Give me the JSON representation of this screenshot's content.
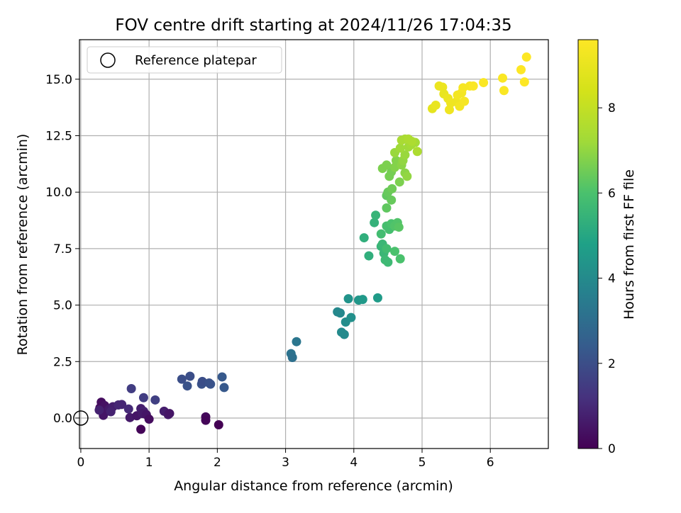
{
  "chart_data": {
    "type": "scatter",
    "title": "FOV centre drift starting at 2024/11/26 17:04:35",
    "xlabel": "Angular distance from reference (arcmin)",
    "ylabel": "Rotation from reference (arcmin)",
    "colorbar_label": "Hours from first FF file",
    "xlim": [
      -0.02,
      6.85
    ],
    "ylim": [
      -1.35,
      16.75
    ],
    "x_ticks": [
      0,
      1,
      2,
      3,
      4,
      5,
      6
    ],
    "y_ticks": [
      0.0,
      2.5,
      5.0,
      7.5,
      10.0,
      12.5,
      15.0
    ],
    "colorbar_range": [
      0,
      9.6
    ],
    "colorbar_ticks": [
      0,
      2,
      4,
      6,
      8
    ],
    "colormap": "viridis",
    "grid": true,
    "legend_position": "top-left",
    "reference": {
      "label": "Reference platepar",
      "x": 0,
      "y": 0
    },
    "series": [
      {
        "marker": "circle-filled",
        "points": [
          [
            0.28,
            0.45,
            0.2
          ],
          [
            0.3,
            0.7,
            0.3
          ],
          [
            0.35,
            0.55,
            0.4
          ],
          [
            0.38,
            0.3,
            0.5
          ],
          [
            0.33,
            0.12,
            0.5
          ],
          [
            0.42,
            0.4,
            0.6
          ],
          [
            0.47,
            0.5,
            0.7
          ],
          [
            0.27,
            0.35,
            0.8
          ],
          [
            0.44,
            0.28,
            0.8
          ],
          [
            0.55,
            0.58,
            0.9
          ],
          [
            0.6,
            0.6,
            0.9
          ],
          [
            0.7,
            0.4,
            1.0
          ],
          [
            0.72,
            0.02,
            0.6
          ],
          [
            0.82,
            0.1,
            0.5
          ],
          [
            0.88,
            0.42,
            0.7
          ],
          [
            0.92,
            0.3,
            0.8
          ],
          [
            0.9,
            0.2,
            0.6
          ],
          [
            0.96,
            0.15,
            0.5
          ],
          [
            1.0,
            -0.05,
            0.3
          ],
          [
            0.88,
            -0.5,
            0.1
          ],
          [
            1.22,
            0.3,
            0.7
          ],
          [
            1.28,
            0.15,
            0.6
          ],
          [
            1.3,
            0.2,
            0.5
          ],
          [
            1.83,
            0.05,
            0.2
          ],
          [
            1.83,
            -0.1,
            0.1
          ],
          [
            2.02,
            -0.3,
            0.0
          ],
          [
            0.74,
            1.3,
            1.5
          ],
          [
            0.92,
            0.9,
            1.5
          ],
          [
            1.09,
            0.8,
            1.6
          ],
          [
            1.48,
            1.72,
            2.0
          ],
          [
            1.6,
            1.85,
            2.0
          ],
          [
            1.56,
            1.42,
            2.1
          ],
          [
            1.77,
            1.5,
            2.1
          ],
          [
            1.78,
            1.62,
            2.0
          ],
          [
            1.9,
            1.5,
            2.2
          ],
          [
            1.88,
            1.55,
            2.1
          ],
          [
            2.07,
            1.82,
            2.3
          ],
          [
            2.1,
            1.35,
            2.3
          ],
          [
            3.08,
            2.85,
            3.2
          ],
          [
            3.1,
            2.68,
            3.1
          ],
          [
            3.16,
            3.38,
            3.3
          ],
          [
            3.76,
            4.7,
            3.9
          ],
          [
            3.8,
            4.65,
            3.9
          ],
          [
            3.82,
            3.8,
            4.0
          ],
          [
            3.86,
            3.7,
            4.0
          ],
          [
            3.88,
            4.25,
            4.1
          ],
          [
            3.96,
            4.45,
            4.2
          ],
          [
            3.92,
            5.28,
            4.3
          ],
          [
            4.07,
            5.22,
            4.4
          ],
          [
            4.13,
            5.25,
            4.5
          ],
          [
            4.35,
            5.32,
            4.6
          ],
          [
            4.15,
            7.98,
            5.3
          ],
          [
            4.22,
            7.18,
            5.3
          ],
          [
            4.3,
            8.65,
            5.4
          ],
          [
            4.32,
            8.98,
            5.5
          ],
          [
            4.4,
            7.6,
            5.5
          ],
          [
            4.42,
            7.7,
            5.6
          ],
          [
            4.44,
            7.3,
            5.6
          ],
          [
            4.46,
            7.0,
            5.7
          ],
          [
            4.5,
            6.9,
            5.7
          ],
          [
            4.48,
            7.5,
            5.8
          ],
          [
            4.4,
            8.15,
            5.8
          ],
          [
            4.48,
            8.5,
            5.9
          ],
          [
            4.52,
            8.35,
            5.9
          ],
          [
            4.55,
            8.6,
            6.0
          ],
          [
            4.6,
            8.5,
            6.1
          ],
          [
            4.64,
            8.65,
            6.1
          ],
          [
            4.66,
            8.45,
            6.2
          ],
          [
            4.6,
            7.38,
            6.0
          ],
          [
            4.68,
            7.05,
            6.0
          ],
          [
            4.48,
            9.3,
            6.3
          ],
          [
            4.48,
            9.85,
            6.3
          ],
          [
            4.5,
            10.0,
            6.4
          ],
          [
            4.55,
            9.65,
            6.4
          ],
          [
            4.56,
            10.15,
            6.5
          ],
          [
            4.52,
            10.7,
            6.6
          ],
          [
            4.55,
            10.9,
            6.6
          ],
          [
            4.42,
            11.05,
            6.7
          ],
          [
            4.48,
            11.2,
            6.7
          ],
          [
            4.6,
            11.1,
            6.8
          ],
          [
            4.62,
            11.4,
            6.8
          ],
          [
            4.67,
            10.45,
            6.7
          ],
          [
            4.7,
            11.2,
            6.9
          ],
          [
            4.75,
            10.85,
            6.9
          ],
          [
            4.78,
            10.7,
            7.0
          ],
          [
            4.72,
            11.4,
            7.0
          ],
          [
            4.75,
            11.65,
            7.1
          ],
          [
            4.6,
            11.75,
            7.1
          ],
          [
            4.68,
            11.95,
            7.2
          ],
          [
            4.8,
            12.0,
            7.2
          ],
          [
            4.84,
            12.1,
            7.3
          ],
          [
            4.9,
            12.2,
            7.3
          ],
          [
            4.7,
            12.3,
            7.4
          ],
          [
            4.75,
            12.35,
            7.4
          ],
          [
            4.8,
            12.35,
            7.5
          ],
          [
            4.85,
            12.25,
            7.5
          ],
          [
            4.93,
            11.8,
            7.5
          ],
          [
            5.15,
            13.7,
            8.9
          ],
          [
            5.2,
            13.85,
            9.0
          ],
          [
            5.25,
            14.7,
            9.1
          ],
          [
            5.3,
            14.65,
            9.1
          ],
          [
            5.32,
            14.35,
            9.0
          ],
          [
            5.38,
            14.15,
            9.1
          ],
          [
            5.42,
            13.95,
            9.2
          ],
          [
            5.4,
            13.65,
            9.2
          ],
          [
            5.5,
            14.0,
            9.2
          ],
          [
            5.52,
            14.3,
            9.3
          ],
          [
            5.55,
            13.8,
            9.3
          ],
          [
            5.58,
            14.4,
            9.3
          ],
          [
            5.6,
            14.62,
            9.4
          ],
          [
            5.62,
            14.02,
            9.4
          ],
          [
            5.7,
            14.7,
            9.4
          ],
          [
            5.75,
            14.7,
            9.5
          ],
          [
            5.9,
            14.85,
            9.5
          ],
          [
            6.18,
            15.05,
            9.5
          ],
          [
            6.2,
            14.5,
            9.5
          ],
          [
            6.45,
            15.42,
            9.6
          ],
          [
            6.5,
            14.88,
            9.6
          ],
          [
            6.53,
            15.98,
            9.6
          ]
        ]
      }
    ]
  }
}
